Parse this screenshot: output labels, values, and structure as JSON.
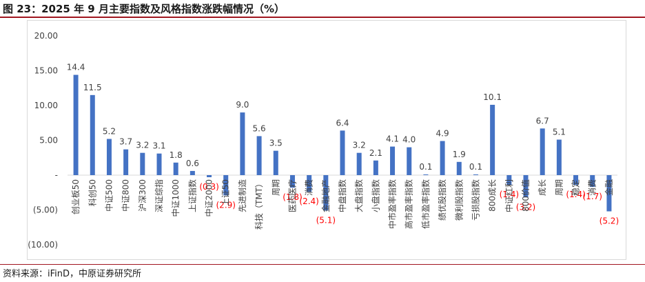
{
  "figure": {
    "title": "图 23：2025 年 9 月主要指数及风格指数涨跌幅情况（%）",
    "source": "资料来源：iFinD，中原证券研究所"
  },
  "colors": {
    "bar": "#4472c4",
    "neg_label": "#ff0000",
    "pos_label": "#404040",
    "accent_rule": "#a0141e"
  },
  "chart_data": {
    "type": "bar",
    "title": "",
    "xlabel": "",
    "ylabel": "",
    "ylim": [
      -10,
      20
    ],
    "ytick_labels": [
      "20.00",
      "15.00",
      "10.00",
      "5.00",
      "-",
      "(5.00)",
      "(10.00)"
    ],
    "grid": false,
    "categories": [
      "创业板50",
      "科创50",
      "中证500",
      "中证800",
      "沪深300",
      "深证综指",
      "中证1000",
      "上证指数",
      "中证2000",
      "上证50",
      "先进制造",
      "科技（TMT）",
      "周期",
      "医药医疗",
      "消费",
      "金融地产",
      "中盘指数",
      "大盘指数",
      "小盘指数",
      "中市盈率指数",
      "高市盈率指数",
      "低市盈率指数",
      "绩优股指数",
      "微利股指数",
      "亏损股指数",
      "800成长",
      "中证红利",
      "800价值",
      "成长",
      "周期",
      "稳定",
      "消费",
      "金融"
    ],
    "values": [
      14.4,
      11.5,
      5.2,
      3.7,
      3.2,
      3.1,
      1.8,
      0.6,
      -0.3,
      -2.9,
      9.0,
      5.6,
      3.5,
      -1.8,
      -2.4,
      -5.1,
      6.4,
      3.2,
      2.1,
      4.1,
      4.0,
      0.1,
      4.9,
      1.9,
      0.1,
      10.1,
      -1.4,
      -3.2,
      6.7,
      5.1,
      -1.4,
      -1.7,
      -5.2
    ],
    "value_labels": [
      "14.4",
      "11.5",
      "5.2",
      "3.7",
      "3.2",
      "3.1",
      "1.8",
      "0.6",
      "(0.3)",
      "(2.9)",
      "9.0",
      "5.6",
      "3.5",
      "(1.8)",
      "(2.4)",
      "(5.1)",
      "6.4",
      "3.2",
      "2.1",
      "4.1",
      "4.0",
      "0.1",
      "4.9",
      "1.9",
      "0.1",
      "10.1",
      "(1.4)",
      "(3.2)",
      "6.7",
      "5.1",
      "(1.4)",
      "(1.7)",
      "(5.2)"
    ]
  }
}
